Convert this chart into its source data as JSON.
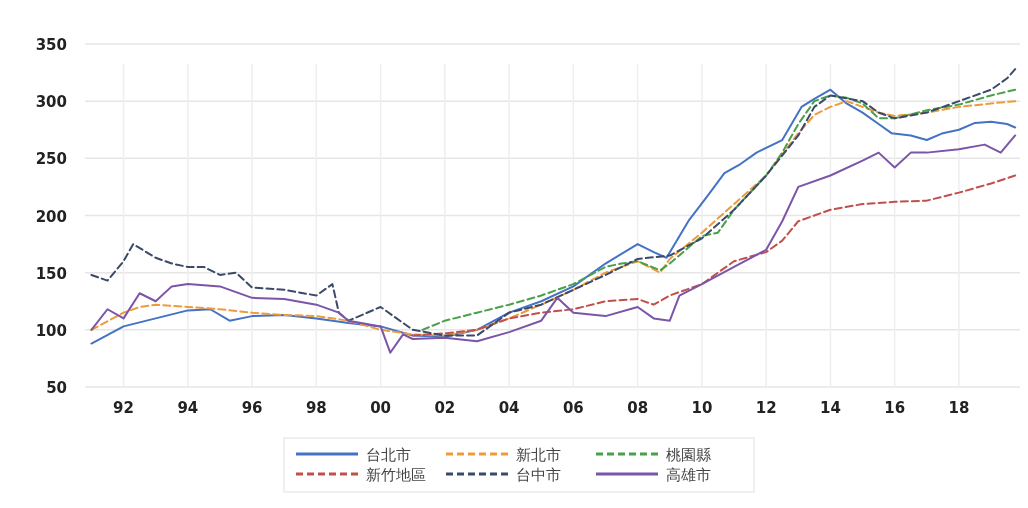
{
  "chart_data": {
    "type": "line",
    "xlim": [
      1990.8,
      2019.9
    ],
    "ylim": [
      50,
      350
    ],
    "xticks": [
      {
        "value": 1992,
        "label": "92"
      },
      {
        "value": 1994,
        "label": "94"
      },
      {
        "value": 1996,
        "label": "96"
      },
      {
        "value": 1998,
        "label": "98"
      },
      {
        "value": 2000,
        "label": "00"
      },
      {
        "value": 2002,
        "label": "02"
      },
      {
        "value": 2004,
        "label": "04"
      },
      {
        "value": 2006,
        "label": "06"
      },
      {
        "value": 2008,
        "label": "08"
      },
      {
        "value": 2010,
        "label": "10"
      },
      {
        "value": 2012,
        "label": "12"
      },
      {
        "value": 2014,
        "label": "14"
      },
      {
        "value": 2016,
        "label": "16"
      },
      {
        "value": 2018,
        "label": "18"
      }
    ],
    "yticks": [
      50,
      100,
      150,
      200,
      250,
      300,
      350
    ],
    "grid": true,
    "legend": "bottom",
    "marker": "none",
    "series": [
      {
        "name": "台北市",
        "color": "#4472c4",
        "line_style": "solid",
        "x": [
          1991,
          1992,
          1993,
          1994,
          1994.7,
          1995.3,
          1996,
          1997,
          1998,
          1999,
          2000,
          2001,
          2002,
          2003,
          2004,
          2005,
          2006,
          2007,
          2008,
          2008.5,
          2008.9,
          2009.6,
          2010.2,
          2010.7,
          2011.2,
          2011.7,
          2012.5,
          2013.1,
          2013.5,
          2014,
          2014.5,
          2015,
          2015.5,
          2015.9,
          2016.5,
          2017,
          2017.5,
          2018,
          2018.5,
          2019,
          2019.5,
          2019.75
        ],
        "values": [
          88,
          103,
          110,
          117,
          118,
          108,
          112,
          113,
          110,
          106,
          103,
          95,
          94,
          100,
          115,
          125,
          138,
          158,
          175,
          168,
          163,
          196,
          218,
          237,
          245,
          255,
          266,
          295,
          302,
          310,
          298,
          290,
          280,
          272,
          270,
          266,
          272,
          275,
          281,
          282,
          280,
          277
        ]
      },
      {
        "name": "新北市",
        "color": "#ed9b3a",
        "line_style": "dashed",
        "x": [
          1991,
          1992,
          1992.5,
          1993,
          1994,
          1995,
          1996,
          1997,
          1998,
          1999,
          2000,
          2001,
          2002,
          2003,
          2004,
          2005,
          2006,
          2007,
          2008,
          2008.7,
          2009,
          2010,
          2011,
          2012,
          2013,
          2013.5,
          2014,
          2014.5,
          2015,
          2015.5,
          2016,
          2017,
          2018,
          2019,
          2019.75
        ],
        "values": [
          100,
          115,
          120,
          122,
          120,
          118,
          115,
          113,
          112,
          108,
          100,
          96,
          95,
          100,
          110,
          122,
          135,
          150,
          160,
          150,
          162,
          185,
          210,
          235,
          272,
          288,
          295,
          300,
          295,
          290,
          287,
          290,
          295,
          298,
          300
        ]
      },
      {
        "name": "桃園縣",
        "color": "#4aa04a",
        "line_style": "dashed",
        "x": [
          2001.3,
          2002,
          2003,
          2004,
          2005,
          2006,
          2007,
          2007.5,
          2008,
          2008.7,
          2009,
          2009.5,
          2010,
          2010.5,
          2011,
          2012,
          2012.5,
          2013,
          2013.5,
          2014,
          2014.5,
          2015,
          2015.5,
          2016,
          2017,
          2018,
          2019,
          2019.75
        ],
        "values": [
          100,
          108,
          115,
          122,
          130,
          140,
          155,
          158,
          160,
          152,
          158,
          170,
          182,
          185,
          205,
          235,
          255,
          280,
          300,
          305,
          303,
          298,
          285,
          285,
          292,
          297,
          305,
          310
        ]
      },
      {
        "name": "新竹地區",
        "color": "#c0504d",
        "line_style": "dashed",
        "x": [
          2001,
          2002,
          2003,
          2004,
          2005,
          2006,
          2007,
          2008,
          2008.5,
          2009,
          2010,
          2011,
          2012,
          2012.5,
          2013,
          2013.5,
          2014,
          2015,
          2016,
          2017,
          2018,
          2019,
          2019.75
        ],
        "values": [
          95,
          97,
          100,
          110,
          115,
          118,
          125,
          127,
          122,
          130,
          140,
          160,
          168,
          178,
          195,
          200,
          205,
          210,
          212,
          213,
          220,
          228,
          235
        ]
      },
      {
        "name": "台中市",
        "color": "#3b4a6b",
        "line_style": "dashed",
        "x": [
          1991,
          1991.5,
          1992,
          1992.3,
          1993,
          1993.5,
          1994,
          1994.5,
          1995,
          1995.5,
          1996,
          1997,
          1998,
          1998.5,
          1998.7,
          1999,
          2000,
          2000.5,
          2001,
          2002,
          2003,
          2004,
          2005,
          2006,
          2007,
          2008,
          2009,
          2010,
          2011,
          2012,
          2013,
          2013.5,
          2014,
          2015,
          2015.5,
          2016,
          2017,
          2018,
          2019,
          2019.5,
          2019.75
        ],
        "values": [
          148,
          143,
          160,
          175,
          163,
          158,
          155,
          155,
          148,
          150,
          137,
          135,
          130,
          140,
          115,
          108,
          120,
          110,
          100,
          95,
          95,
          115,
          122,
          135,
          148,
          162,
          165,
          180,
          205,
          235,
          270,
          295,
          305,
          300,
          290,
          285,
          290,
          300,
          310,
          320,
          328
        ]
      },
      {
        "name": "高雄市",
        "color": "#7a55a8",
        "line_style": "solid",
        "x": [
          1991,
          1991.5,
          1992,
          1992.5,
          1993,
          1993.5,
          1994,
          1995,
          1996,
          1997,
          1998,
          1998.7,
          1999,
          2000,
          2000.3,
          2000.7,
          2001,
          2002,
          2003,
          2004,
          2005,
          2005.5,
          2006,
          2007,
          2008,
          2008.5,
          2009,
          2009.3,
          2010,
          2011,
          2012,
          2012.5,
          2013,
          2014,
          2015,
          2015.5,
          2016,
          2016.5,
          2017,
          2018,
          2018.8,
          2019.3,
          2019.75
        ],
        "values": [
          100,
          118,
          110,
          132,
          125,
          138,
          140,
          138,
          128,
          127,
          122,
          115,
          108,
          103,
          80,
          96,
          92,
          93,
          90,
          98,
          108,
          128,
          115,
          112,
          120,
          110,
          108,
          130,
          140,
          155,
          170,
          195,
          225,
          235,
          248,
          255,
          242,
          255,
          255,
          258,
          262,
          255,
          270
        ]
      }
    ]
  }
}
